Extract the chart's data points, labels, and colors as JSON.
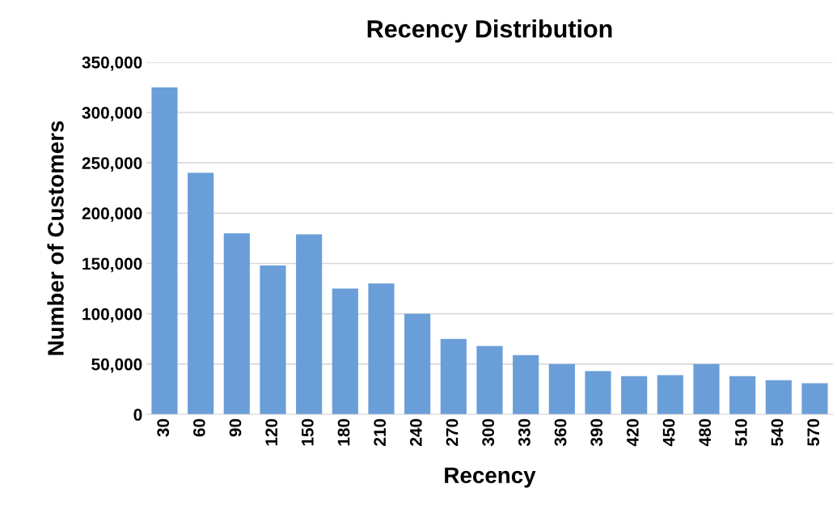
{
  "chart_data": {
    "type": "bar",
    "title": "Recency Distribution",
    "xlabel": "Recency",
    "ylabel": "Number of Customers",
    "categories": [
      "30",
      "60",
      "90",
      "120",
      "150",
      "180",
      "210",
      "240",
      "270",
      "300",
      "330",
      "360",
      "390",
      "420",
      "450",
      "480",
      "510",
      "540",
      "570"
    ],
    "values": [
      325000,
      240000,
      180000,
      148000,
      179000,
      125000,
      130000,
      100000,
      75000,
      68000,
      59000,
      50000,
      43000,
      38000,
      39000,
      50000,
      38000,
      34000,
      31000
    ],
    "color": "#6a9ed8",
    "ylim": [
      0,
      350000
    ],
    "yticks": [
      {
        "value": 0,
        "label": "0"
      },
      {
        "value": 50000,
        "label": "50,000"
      },
      {
        "value": 100000,
        "label": "100,000"
      },
      {
        "value": 150000,
        "label": "150,000"
      },
      {
        "value": 200000,
        "label": "200,000"
      },
      {
        "value": 250000,
        "label": "250,000"
      },
      {
        "value": 300000,
        "label": "300,000"
      },
      {
        "value": 350000,
        "label": "350,000"
      }
    ],
    "grid": "y"
  }
}
